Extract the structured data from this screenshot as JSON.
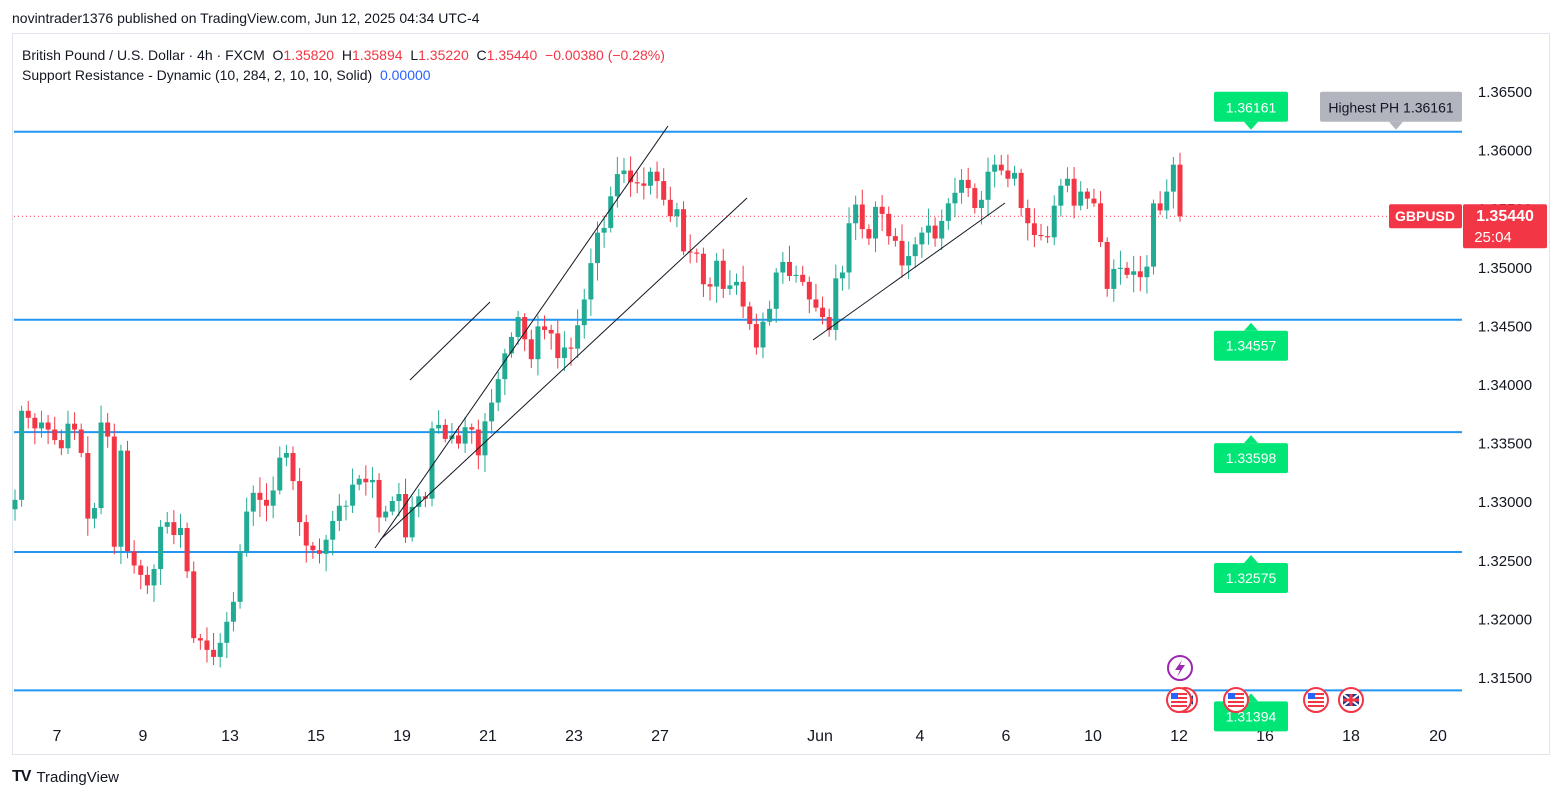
{
  "header": {
    "published": "novintrader1376 published on TradingView.com, Jun 12, 2025 04:34 UTC-4"
  },
  "legend": {
    "symbol_desc": "British Pound / U.S. Dollar · 4h · FXCM",
    "o_label": "O",
    "o_value": "1.35820",
    "h_label": "H",
    "h_value": "1.35894",
    "l_label": "L",
    "l_value": "1.35220",
    "c_label": "C",
    "c_value": "1.35440",
    "change": "−0.00380 (−0.28%)",
    "indicator": "Support Resistance - Dynamic (10, 284, 2, 10, 10, Solid)",
    "indicator_value": "0.00000"
  },
  "footer": {
    "brand": "TradingView"
  },
  "colors": {
    "up": "#26a69a_like_green",
    "up_hex": "#22ab94",
    "down_hex": "#f23645",
    "level_line": "#2196f3",
    "label_green": "#00e676",
    "label_gray": "#b2b5be"
  },
  "chart_data": {
    "type": "candlestick",
    "symbol": "GBPUSD",
    "timeframe": "4h",
    "last_price": "1.35440",
    "countdown": "25:04",
    "y_axis": {
      "min": 1.3108,
      "max": 1.3672,
      "ticks": [
        "1.36500",
        "1.36000",
        "1.35500",
        "1.35000",
        "1.34500",
        "1.34000",
        "1.33500",
        "1.33000",
        "1.32500",
        "1.32000",
        "1.31500"
      ]
    },
    "x_axis": {
      "labels": [
        "7",
        "9",
        "13",
        "15",
        "19",
        "21",
        "23",
        "27",
        "Jun",
        "4",
        "6",
        "10",
        "12",
        "16",
        "18",
        "20"
      ]
    },
    "levels": [
      {
        "price": 1.36161,
        "label": "1.36161"
      },
      {
        "price": 1.34557,
        "label": "1.34557"
      },
      {
        "price": 1.33598,
        "label": "1.33598"
      },
      {
        "price": 1.32575,
        "label": "1.32575"
      },
      {
        "price": 1.31394,
        "label": "1.31394"
      }
    ],
    "highest_ph_label": "Highest PH 1.36161",
    "close_series_approx": [
      1.3302,
      1.3378,
      1.3372,
      1.3363,
      1.3368,
      1.3362,
      1.3353,
      1.3346,
      1.3367,
      1.3362,
      1.3342,
      1.3286,
      1.3295,
      1.3368,
      1.3356,
      1.3262,
      1.3344,
      1.3258,
      1.3246,
      1.3238,
      1.3229,
      1.3243,
      1.3279,
      1.3283,
      1.3272,
      1.3278,
      1.3241,
      1.3184,
      1.3182,
      1.3174,
      1.3168,
      1.318,
      1.3198,
      1.3215,
      1.3258,
      1.3292,
      1.3308,
      1.3302,
      1.3297,
      1.331,
      1.3338,
      1.3342,
      1.3318,
      1.3283,
      1.3263,
      1.3259,
      1.3256,
      1.3268,
      1.3284,
      1.3297,
      1.3297,
      1.3315,
      1.332,
      1.3317,
      1.3319,
      1.3287,
      1.3292,
      1.3301,
      1.3307,
      1.327,
      1.3296,
      1.3305,
      1.3303,
      1.3363,
      1.3366,
      1.3354,
      1.3357,
      1.335,
      1.3364,
      1.3362,
      1.334,
      1.3369,
      1.3385,
      1.3405,
      1.3427,
      1.3441,
      1.3458,
      1.3439,
      1.3422,
      1.345,
      1.3447,
      1.3444,
      1.3423,
      1.3432,
      1.3431,
      1.3451,
      1.3473,
      1.3504,
      1.353,
      1.3534,
      1.3561,
      1.358,
      1.3583,
      1.3573,
      1.3572,
      1.357,
      1.3582,
      1.3574,
      1.3558,
      1.3544,
      1.355,
      1.3514,
      1.3513,
      1.3512,
      1.3486,
      1.3484,
      1.3506,
      1.3482,
      1.3485,
      1.3488,
      1.3467,
      1.3452,
      1.3432,
      1.3454,
      1.3465,
      1.3496,
      1.3505,
      1.3493,
      1.3494,
      1.3488,
      1.3473,
      1.3466,
      1.3458,
      1.3447,
      1.3491,
      1.3496,
      1.3538,
      1.3554,
      1.3533,
      1.3525,
      1.3552,
      1.3546,
      1.3527,
      1.3523,
      1.3502,
      1.351,
      1.352,
      1.353,
      1.3536,
      1.3525,
      1.354,
      1.3555,
      1.3564,
      1.3575,
      1.3568,
      1.3551,
      1.3558,
      1.3582,
      1.3588,
      1.3583,
      1.3576,
      1.3581,
      1.3551,
      1.3538,
      1.3528,
      1.3527,
      1.3526,
      1.3553,
      1.357,
      1.3576,
      1.3553,
      1.3565,
      1.3559,
      1.3555,
      1.3522,
      1.3482,
      1.3499,
      1.35,
      1.3494,
      1.3497,
      1.3492,
      1.3501,
      1.3555,
      1.3549,
      1.3565,
      1.3588,
      1.3544
    ]
  }
}
